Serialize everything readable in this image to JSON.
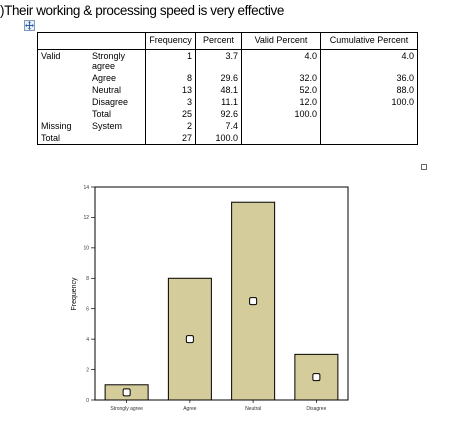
{
  "title": ")Their working & processing  speed is very effective",
  "table": {
    "headers": [
      "",
      "",
      "Frequency",
      "Percent",
      "Valid Percent",
      "Cumulative Percent"
    ],
    "rows": [
      {
        "group": "Valid",
        "category": "Strongly agree",
        "frequency": "1",
        "percent": "3.7",
        "valid_percent": "4.0",
        "cumulative_percent": "4.0"
      },
      {
        "group": "",
        "category": "Agree",
        "frequency": "8",
        "percent": "29.6",
        "valid_percent": "32.0",
        "cumulative_percent": "36.0"
      },
      {
        "group": "",
        "category": "Neutral",
        "frequency": "13",
        "percent": "48.1",
        "valid_percent": "52.0",
        "cumulative_percent": "88.0"
      },
      {
        "group": "",
        "category": "Disagree",
        "frequency": "3",
        "percent": "11.1",
        "valid_percent": "12.0",
        "cumulative_percent": "100.0"
      },
      {
        "group": "",
        "category": "Total",
        "frequency": "25",
        "percent": "92.6",
        "valid_percent": "100.0",
        "cumulative_percent": ""
      },
      {
        "group": "Missing",
        "category": "System",
        "frequency": "2",
        "percent": "7.4",
        "valid_percent": "",
        "cumulative_percent": ""
      },
      {
        "group": "Total",
        "category": "",
        "frequency": "27",
        "percent": "100.0",
        "valid_percent": "",
        "cumulative_percent": ""
      }
    ]
  },
  "chart_data": {
    "type": "bar",
    "categories": [
      "Strongly agree",
      "Agree",
      "Neutral",
      "Disagree"
    ],
    "values": [
      1,
      8,
      13,
      3
    ],
    "title": "",
    "xlabel": "",
    "ylabel": "Frequency",
    "ylim": [
      0,
      14
    ],
    "yticks": [
      "0",
      "2",
      "4",
      "6",
      "8",
      "10",
      "12",
      "14"
    ],
    "grid": false,
    "bar_color": "#d4cc9a",
    "bar_outline_color": "#000000",
    "marker": "hollow-square-at-bar-midpoint"
  },
  "icons": {
    "move_handle": "move-cross-icon",
    "resize_handle": "resize-handle-icon"
  }
}
